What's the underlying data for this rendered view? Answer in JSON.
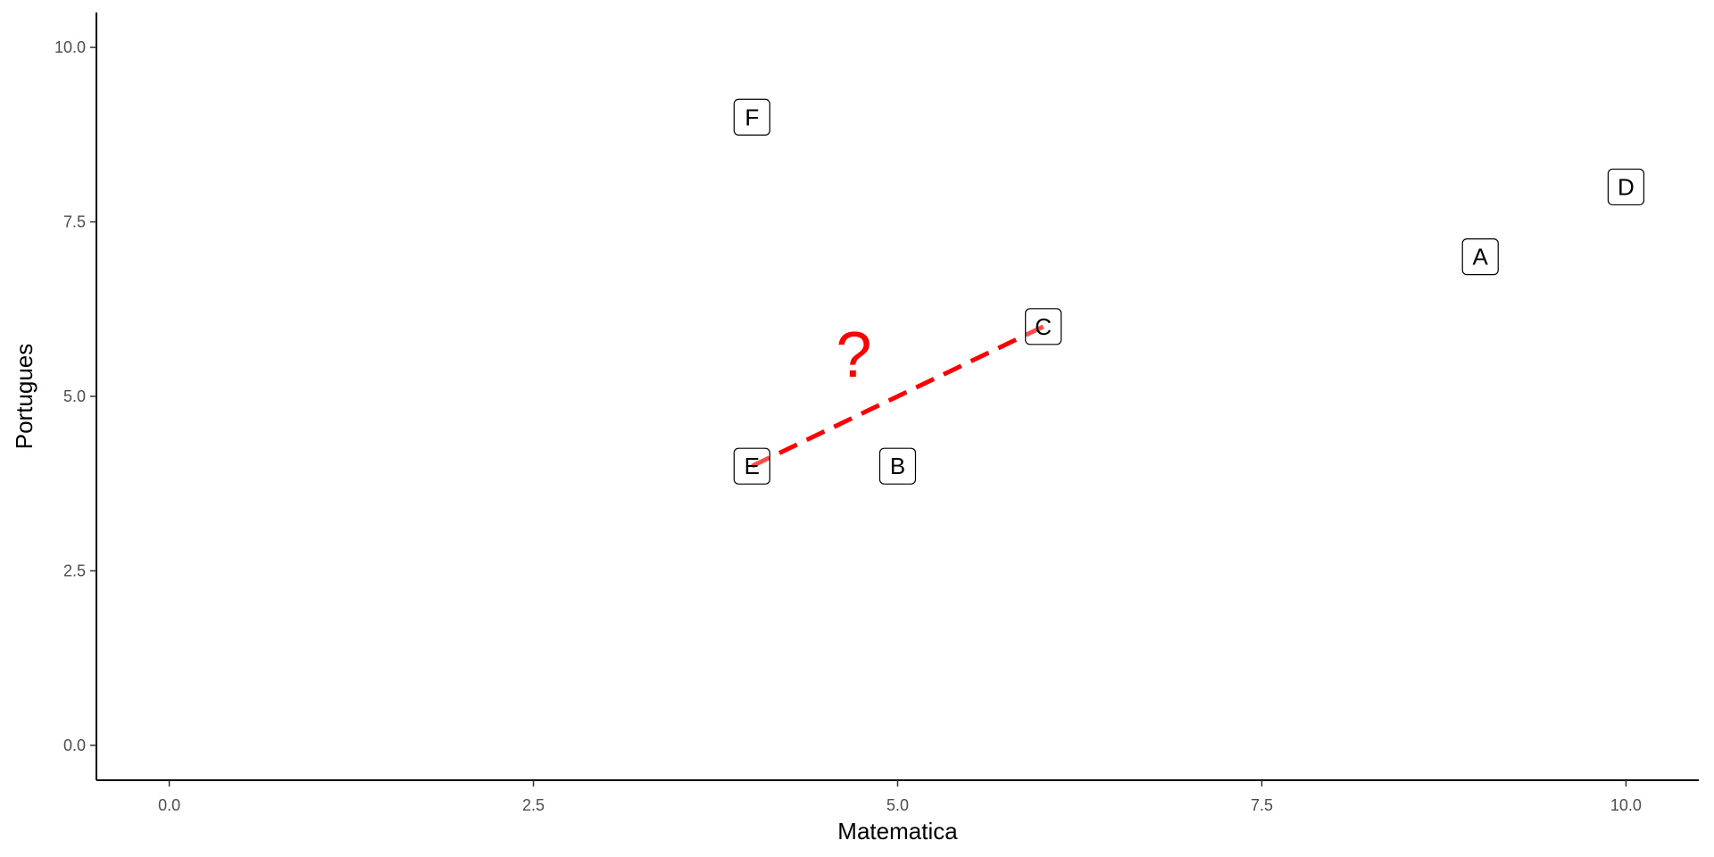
{
  "chart_data": {
    "type": "scatter",
    "title": "",
    "xlabel": "Matematica",
    "ylabel": "Portugues",
    "xlim": [
      -0.5,
      10.5
    ],
    "ylim": [
      -0.5,
      10.5
    ],
    "grid": false,
    "x_ticks": [
      0.0,
      2.5,
      5.0,
      7.5,
      10.0
    ],
    "y_ticks": [
      0.0,
      2.5,
      5.0,
      7.5,
      10.0
    ],
    "x_tick_labels": [
      "0.0",
      "2.5",
      "5.0",
      "7.5",
      "10.0"
    ],
    "y_tick_labels": [
      "0.0",
      "2.5",
      "5.0",
      "7.5",
      "10.0"
    ],
    "points": [
      {
        "label": "A",
        "x": 9,
        "y": 7
      },
      {
        "label": "B",
        "x": 5,
        "y": 4
      },
      {
        "label": "C",
        "x": 6,
        "y": 6
      },
      {
        "label": "D",
        "x": 10,
        "y": 8
      },
      {
        "label": "E",
        "x": 4,
        "y": 4
      },
      {
        "label": "F",
        "x": 4,
        "y": 9
      }
    ],
    "segments": [
      {
        "from": [
          4,
          4
        ],
        "to": [
          6,
          6
        ],
        "color": "#ff0000",
        "style": "dashed"
      }
    ],
    "annotations": [
      {
        "text": "?",
        "x": 4.7,
        "y": 5.6,
        "color": "#ff0000"
      }
    ]
  }
}
